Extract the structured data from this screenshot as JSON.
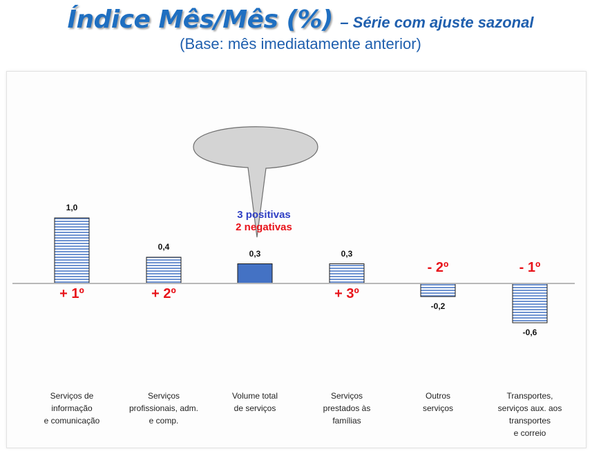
{
  "title": {
    "main": "Índice Mês/Mês (%)",
    "sub": "– Série com ajuste sazonal",
    "subtitle": "(Base: mês imediatamente anterior)"
  },
  "callout": {
    "positives": "3 positivas",
    "negatives": "2 negativas"
  },
  "chart_data": {
    "type": "bar",
    "title": "Índice Mês/Mês (%)",
    "categories": [
      "Serviços de\ninformação\ne comunicação",
      "Serviços\nprofissionais, adm.\ne comp.",
      "Volume total\nde serviços",
      "Serviços\nprestados às\nfamílias",
      "Outros\nserviços",
      "Transportes,\nserviços aux. aos\ntransportes\ne correio"
    ],
    "values": [
      1.0,
      0.4,
      0.3,
      0.3,
      -0.2,
      -0.6
    ],
    "value_labels": [
      "1,0",
      "0,4",
      "0,3",
      "0,3",
      "-0,2",
      "-0,6"
    ],
    "ranks": [
      "+ 1º",
      "+ 2º",
      "",
      "+ 3º",
      "- 2º",
      "- 1º"
    ],
    "highlight_index": 2,
    "colors": {
      "highlight": "#4472c4",
      "stripe": "#6f93d1",
      "rank": "#e8141b",
      "axis": "#b8b8b8"
    },
    "grid": false,
    "legend": "none"
  }
}
